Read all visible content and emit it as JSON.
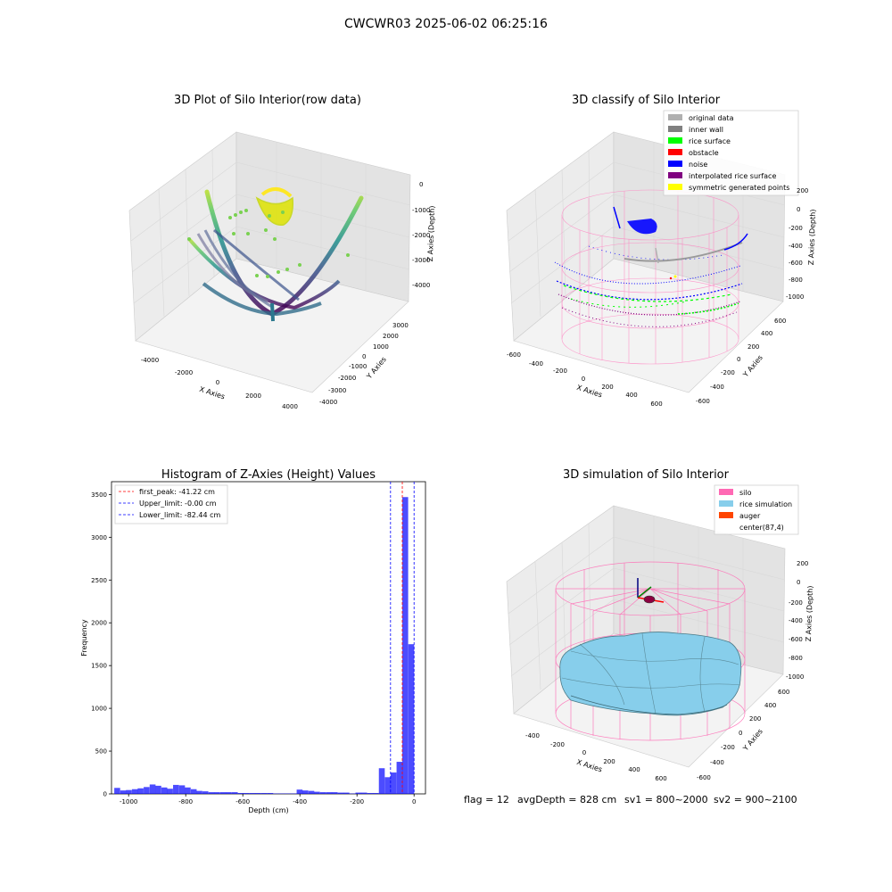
{
  "suptitle": "CWCWR03 2025-06-02 06:25:16",
  "footer": {
    "flag": "flag = 12",
    "avg_depth": "avgDepth = 828 cm",
    "sv1": "sv1 = 800~2000",
    "sv2": "sv2 = 900~2100"
  },
  "panel_raw": {
    "title": "3D Plot of Silo Interior(row data)",
    "xlabel": "X Axies",
    "ylabel": "Y Axies",
    "zlabel": "Z Axies (Depth)",
    "x_ticks": [
      "-4000",
      "-2000",
      "0",
      "2000",
      "4000"
    ],
    "y_ticks": [
      "-4000",
      "-3000",
      "-2000",
      "-1000",
      "0",
      "1000",
      "2000",
      "3000"
    ],
    "z_ticks": [
      "0",
      "-1000",
      "-2000",
      "-3000",
      "-4000"
    ]
  },
  "panel_classify": {
    "title": "3D classify of Silo Interior",
    "xlabel": "X Axies",
    "ylabel": "Y Axies",
    "zlabel": "Z Axies (Depth)",
    "x_ticks": [
      "-600",
      "-400",
      "-200",
      "0",
      "200",
      "400",
      "600"
    ],
    "y_ticks": [
      "-600",
      "-400",
      "-200",
      "0",
      "200",
      "400",
      "600"
    ],
    "z_ticks": [
      "200",
      "0",
      "-200",
      "-400",
      "-600",
      "-800",
      "-1000"
    ],
    "legend": [
      {
        "label": "original data",
        "color": "#b0b0b0"
      },
      {
        "label": "inner wall",
        "color": "#808080"
      },
      {
        "label": "rice surface",
        "color": "#00ff00"
      },
      {
        "label": "obstacle",
        "color": "#ff0000"
      },
      {
        "label": "noise",
        "color": "#0000ff"
      },
      {
        "label": "interpolated rice surface",
        "color": "#800080"
      },
      {
        "label": "symmetric generated points",
        "color": "#ffff00"
      }
    ]
  },
  "panel_simulation": {
    "title": "3D simulation of Silo Interior",
    "xlabel": "X Axies",
    "ylabel": "Y Axies",
    "zlabel": "Z Axies (Depth)",
    "x_ticks": [
      "-400",
      "-200",
      "0",
      "200",
      "400",
      "600"
    ],
    "y_ticks": [
      "-600",
      "-400",
      "-200",
      "0",
      "200",
      "400",
      "600"
    ],
    "z_ticks": [
      "200",
      "0",
      "-200",
      "-400",
      "-600",
      "-800",
      "-1000"
    ],
    "legend": [
      {
        "label": "silo",
        "color": "#ff69b4"
      },
      {
        "label": "rice simulation",
        "color": "#87ceeb"
      },
      {
        "label": "auger",
        "color": "#ff4500"
      },
      {
        "label": "center(87,4)",
        "color": "#ffffff"
      }
    ]
  },
  "chart_data": [
    {
      "type": "scatter",
      "title": "3D Plot of Silo Interior(row data)",
      "xlabel": "X Axies",
      "ylabel": "Y Axies",
      "zlabel": "Z Axies (Depth)",
      "xlim": [
        -4500,
        4500
      ],
      "ylim": [
        -4000,
        3500
      ],
      "zlim": [
        -4500,
        0
      ],
      "grid": true
    },
    {
      "type": "scatter",
      "title": "3D classify of Silo Interior",
      "xlabel": "X Axies",
      "ylabel": "Y Axies",
      "zlabel": "Z Axies (Depth)",
      "xlim": [
        -600,
        700
      ],
      "ylim": [
        -600,
        700
      ],
      "zlim": [
        -1100,
        200
      ],
      "grid": true,
      "legend_position": "top-right"
    },
    {
      "type": "bar",
      "title": "Histogram of Z-Axies (Height) Values",
      "xlabel": "Depth (cm)",
      "ylabel": "Frequency",
      "xlim": [
        -1060,
        40
      ],
      "ylim": [
        0,
        3650
      ],
      "x_ticks": [
        -1000,
        -800,
        -600,
        -400,
        -200,
        0
      ],
      "y_ticks": [
        0,
        500,
        1000,
        1500,
        2000,
        2500,
        3000,
        3500
      ],
      "bin_width": 20.6,
      "bins": [
        {
          "x": -1040,
          "value": 70
        },
        {
          "x": -1019,
          "value": 40
        },
        {
          "x": -999,
          "value": 45
        },
        {
          "x": -978,
          "value": 55
        },
        {
          "x": -958,
          "value": 65
        },
        {
          "x": -937,
          "value": 80
        },
        {
          "x": -916,
          "value": 110
        },
        {
          "x": -896,
          "value": 95
        },
        {
          "x": -875,
          "value": 75
        },
        {
          "x": -855,
          "value": 60
        },
        {
          "x": -834,
          "value": 105
        },
        {
          "x": -813,
          "value": 100
        },
        {
          "x": -793,
          "value": 75
        },
        {
          "x": -772,
          "value": 55
        },
        {
          "x": -752,
          "value": 35
        },
        {
          "x": -731,
          "value": 30
        },
        {
          "x": -710,
          "value": 20
        },
        {
          "x": -690,
          "value": 20
        },
        {
          "x": -669,
          "value": 20
        },
        {
          "x": -649,
          "value": 20
        },
        {
          "x": -628,
          "value": 20
        },
        {
          "x": -607,
          "value": 10
        },
        {
          "x": -587,
          "value": 10
        },
        {
          "x": -566,
          "value": 10
        },
        {
          "x": -546,
          "value": 10
        },
        {
          "x": -525,
          "value": 10
        },
        {
          "x": -504,
          "value": 10
        },
        {
          "x": -484,
          "value": 5
        },
        {
          "x": -463,
          "value": 5
        },
        {
          "x": -443,
          "value": 5
        },
        {
          "x": -422,
          "value": 5
        },
        {
          "x": -401,
          "value": 50
        },
        {
          "x": -381,
          "value": 40
        },
        {
          "x": -360,
          "value": 35
        },
        {
          "x": -340,
          "value": 25
        },
        {
          "x": -319,
          "value": 20
        },
        {
          "x": -298,
          "value": 20
        },
        {
          "x": -278,
          "value": 20
        },
        {
          "x": -257,
          "value": 15
        },
        {
          "x": -237,
          "value": 15
        },
        {
          "x": -216,
          "value": 5
        },
        {
          "x": -195,
          "value": 15
        },
        {
          "x": -175,
          "value": 15
        },
        {
          "x": -154,
          "value": 10
        },
        {
          "x": -134,
          "value": 10
        },
        {
          "x": -113,
          "value": 300
        },
        {
          "x": -92,
          "value": 195
        },
        {
          "x": -72,
          "value": 250
        },
        {
          "x": -51,
          "value": 375
        },
        {
          "x": -31,
          "value": 3470
        },
        {
          "x": -10,
          "value": 1750
        }
      ],
      "bar_color": "#0000ff",
      "vlines": [
        {
          "label": "first_peak: -41.22 cm",
          "x": -41.22,
          "color": "#ff0000"
        },
        {
          "label": "Upper_limit: -0.00 cm",
          "x": 0,
          "color": "#0000ff"
        },
        {
          "label": "Lower_limit: -82.44 cm",
          "x": -82.44,
          "color": "#0000ff"
        }
      ],
      "legend_position": "top-left"
    },
    {
      "type": "surface",
      "title": "3D simulation of Silo Interior",
      "xlabel": "X Axies",
      "ylabel": "Y Axies",
      "zlabel": "Z Axies (Depth)",
      "xlim": [
        -500,
        700
      ],
      "ylim": [
        -600,
        700
      ],
      "zlim": [
        -1000,
        300
      ],
      "grid": true,
      "legend_position": "top-right"
    }
  ]
}
